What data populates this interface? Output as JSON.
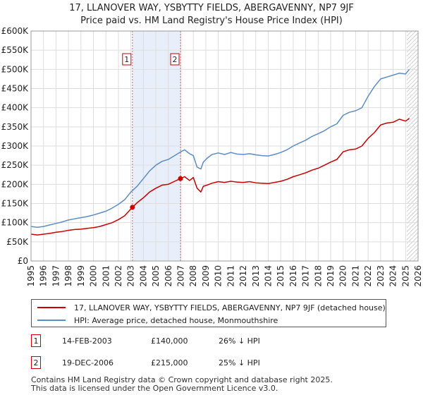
{
  "title_line1": "17, LLANOVER WAY, YSBYTTY FIELDS, ABERGAVENNY, NP7 9JF",
  "title_line2": "Price paid vs. HM Land Registry's House Price Index (HPI)",
  "chart_data": {
    "type": "line",
    "title": "17, LLANOVER WAY, YSBYTTY FIELDS, ABERGAVENNY, NP7 9JF",
    "subtitle": "Price paid vs. HM Land Registry's House Price Index (HPI)",
    "xlabel": "",
    "ylabel": "",
    "xlim": [
      1995,
      2026
    ],
    "ylim": [
      0,
      600000
    ],
    "x_ticks": [
      1995,
      1996,
      1997,
      1998,
      1999,
      2000,
      2001,
      2002,
      2003,
      2004,
      2005,
      2006,
      2007,
      2008,
      2009,
      2010,
      2011,
      2012,
      2013,
      2014,
      2015,
      2016,
      2017,
      2018,
      2019,
      2020,
      2021,
      2022,
      2023,
      2024,
      2025,
      2026
    ],
    "y_ticks": [
      0,
      50000,
      100000,
      150000,
      200000,
      250000,
      300000,
      350000,
      400000,
      450000,
      500000,
      550000,
      600000
    ],
    "y_tick_labels": [
      "£0",
      "£50K",
      "£100K",
      "£150K",
      "£200K",
      "£250K",
      "£300K",
      "£350K",
      "£400K",
      "£450K",
      "£500K",
      "£550K",
      "£600K"
    ],
    "grid": true,
    "series": [
      {
        "name": "17, LLANOVER WAY, YSBYTTY FIELDS, ABERGAVENNY, NP7 9JF (detached house)",
        "color": "#cc0000",
        "x": [
          1995.0,
          1995.5,
          1996.0,
          1996.5,
          1997.0,
          1997.5,
          1998.0,
          1998.5,
          1999.0,
          1999.5,
          2000.0,
          2000.5,
          2001.0,
          2001.5,
          2002.0,
          2002.5,
          2003.12,
          2003.5,
          2004.0,
          2004.5,
          2005.0,
          2005.5,
          2006.0,
          2006.5,
          2006.97,
          2007.3,
          2007.7,
          2008.0,
          2008.3,
          2008.6,
          2008.8,
          2009.1,
          2009.5,
          2010.0,
          2010.5,
          2011.0,
          2011.5,
          2012.0,
          2012.5,
          2013.0,
          2013.5,
          2014.0,
          2014.5,
          2015.0,
          2015.5,
          2016.0,
          2016.5,
          2017.0,
          2017.5,
          2018.0,
          2018.5,
          2019.0,
          2019.5,
          2020.0,
          2020.5,
          2021.0,
          2021.5,
          2022.0,
          2022.5,
          2023.0,
          2023.5,
          2024.0,
          2024.5,
          2025.0,
          2025.3
        ],
        "values": [
          70000,
          68000,
          70000,
          72000,
          75000,
          77000,
          80000,
          82000,
          83000,
          85000,
          87000,
          90000,
          95000,
          100000,
          108000,
          118000,
          140000,
          152000,
          165000,
          180000,
          190000,
          198000,
          200000,
          208000,
          215000,
          220000,
          210000,
          218000,
          190000,
          180000,
          195000,
          198000,
          203000,
          207000,
          205000,
          208000,
          206000,
          205000,
          207000,
          204000,
          203000,
          202000,
          205000,
          208000,
          213000,
          220000,
          225000,
          230000,
          237000,
          242000,
          250000,
          258000,
          265000,
          285000,
          290000,
          292000,
          300000,
          320000,
          335000,
          355000,
          360000,
          362000,
          370000,
          365000,
          372000
        ]
      },
      {
        "name": "HPI: Average price, detached house, Monmouthshire",
        "color": "#5b8ec6",
        "x": [
          1995.0,
          1995.5,
          1996.0,
          1996.5,
          1997.0,
          1997.5,
          1998.0,
          1998.5,
          1999.0,
          1999.5,
          2000.0,
          2000.5,
          2001.0,
          2001.5,
          2002.0,
          2002.5,
          2003.0,
          2003.5,
          2004.0,
          2004.5,
          2005.0,
          2005.5,
          2006.0,
          2006.5,
          2007.0,
          2007.3,
          2007.7,
          2008.0,
          2008.3,
          2008.6,
          2008.8,
          2009.1,
          2009.5,
          2010.0,
          2010.5,
          2011.0,
          2011.5,
          2012.0,
          2012.5,
          2013.0,
          2013.5,
          2014.0,
          2014.5,
          2015.0,
          2015.5,
          2016.0,
          2016.5,
          2017.0,
          2017.5,
          2018.0,
          2018.5,
          2019.0,
          2019.5,
          2020.0,
          2020.5,
          2021.0,
          2021.5,
          2022.0,
          2022.5,
          2023.0,
          2023.5,
          2024.0,
          2024.5,
          2025.0,
          2025.3
        ],
        "values": [
          90000,
          88000,
          90000,
          94000,
          98000,
          102000,
          107000,
          110000,
          113000,
          116000,
          120000,
          125000,
          130000,
          138000,
          148000,
          160000,
          180000,
          195000,
          215000,
          235000,
          250000,
          260000,
          265000,
          275000,
          285000,
          290000,
          280000,
          275000,
          245000,
          240000,
          258000,
          268000,
          278000,
          282000,
          278000,
          283000,
          279000,
          278000,
          280000,
          277000,
          275000,
          274000,
          278000,
          283000,
          290000,
          300000,
          308000,
          315000,
          325000,
          332000,
          340000,
          350000,
          358000,
          380000,
          388000,
          392000,
          400000,
          430000,
          455000,
          475000,
          480000,
          485000,
          490000,
          488000,
          500000
        ]
      }
    ],
    "annotations": [
      {
        "label": "1",
        "x": 2003.12,
        "value": 140000
      },
      {
        "label": "2",
        "x": 2006.97,
        "value": 215000
      }
    ],
    "shaded_region": [
      2003.12,
      2006.97
    ],
    "hatched_region": [
      2025.1,
      2026
    ]
  },
  "legend": {
    "property_label": "17, LLANOVER WAY, YSBYTTY FIELDS, ABERGAVENNY, NP7 9JF (detached house)",
    "hpi_label": "HPI: Average price, detached house, Monmouthshire"
  },
  "sales": [
    {
      "num": "1",
      "date": "14-FEB-2003",
      "price": "£140,000",
      "delta": "26% ↓ HPI"
    },
    {
      "num": "2",
      "date": "19-DEC-2006",
      "price": "£215,000",
      "delta": "25% ↓ HPI"
    }
  ],
  "footer": {
    "line1": "Contains HM Land Registry data © Crown copyright and database right 2025.",
    "line2": "This data is licensed under the Open Government Licence v3.0."
  },
  "colors": {
    "property": "#cc0000",
    "hpi": "#5b8ec6",
    "shade": "#e8eefa",
    "grid": "#dddddd"
  }
}
